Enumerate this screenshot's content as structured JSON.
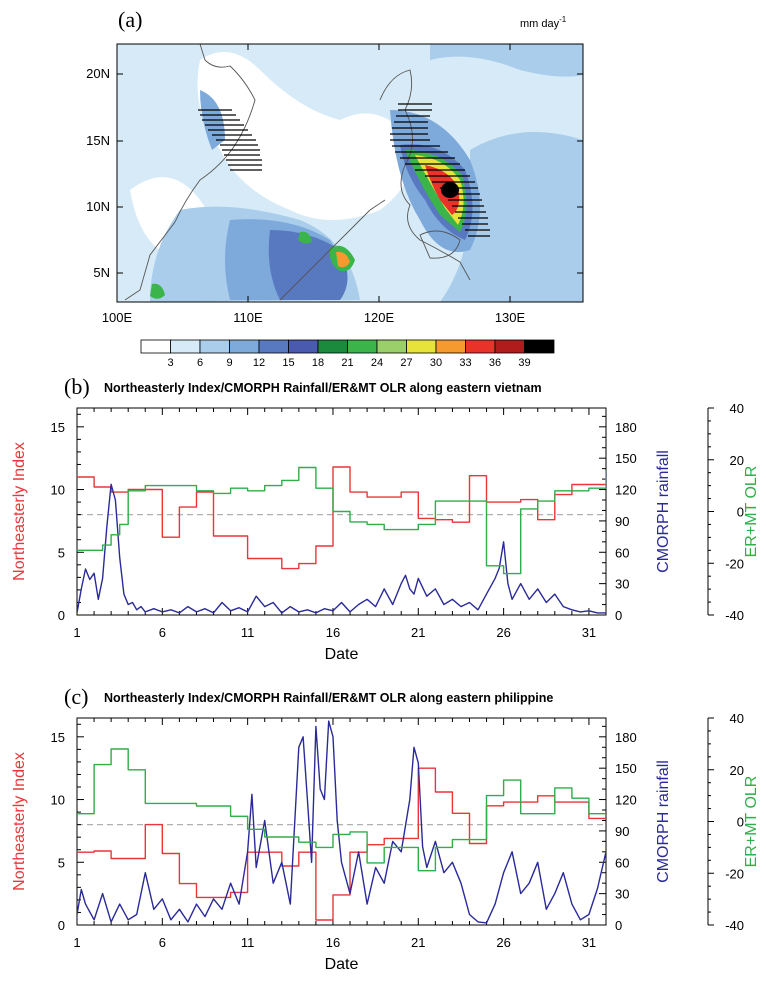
{
  "colors": {
    "ni_line": "#e8363a",
    "rain_line": "#2a2a9a",
    "olr_line": "#2fae4a",
    "ref_line": "#b0b0b0",
    "shading": [
      "#ffffff",
      "#d6ebf7",
      "#a9cdeb",
      "#7ea9db",
      "#5878c0",
      "#4a5aae",
      "#1c8a3c",
      "#3bb54a",
      "#9bcf6a",
      "#e8e33a",
      "#f59a2e",
      "#e8322a",
      "#b01c1c",
      "#000000"
    ]
  },
  "map": {
    "label": "(a)",
    "units_text": "mm day",
    "units_sup": "-1",
    "lat_labels": [
      "20N",
      "15N",
      "10N",
      "5N"
    ],
    "lon_labels": [
      "100E",
      "110E",
      "120E",
      "130E"
    ],
    "colorbar_labels": [
      "3",
      "6",
      "9",
      "12",
      "15",
      "18",
      "21",
      "24",
      "27",
      "30",
      "33",
      "36",
      "39"
    ]
  },
  "chart_data": [
    {
      "type": "line",
      "panel_label": "(b)",
      "title": "Northeasterly Index/CMORPH Rainfall/ER&MT OLR along eastern vietnam",
      "xlabel": "Date",
      "x_ticks": [
        1,
        6,
        11,
        16,
        21,
        26,
        31
      ],
      "xlim": [
        1,
        32
      ],
      "ylabel_left": "Northeasterly Index",
      "ylabel_right": "CMORPH rainfall",
      "ylabel_far": "ER+MT OLR",
      "yticks_left": [
        0,
        5,
        10,
        15
      ],
      "yticks_right": [
        0,
        30,
        60,
        90,
        120,
        150,
        180
      ],
      "yticks_far": [
        -40,
        -20,
        0,
        20,
        40
      ],
      "ylim_left": [
        0,
        16.5
      ],
      "ylim_right": [
        0,
        198
      ],
      "ylim_far": [
        -40,
        40
      ],
      "reference_line_left": 8,
      "series": [
        {
          "name": "Northeasterly Index",
          "axis": "left",
          "step": true,
          "color": "#e8363a",
          "x": [
            1,
            2,
            3,
            4,
            5,
            6,
            7,
            8,
            9,
            10,
            11,
            12,
            13,
            14,
            15,
            16,
            17,
            18,
            19,
            20,
            21,
            22,
            23,
            24,
            25,
            26,
            27,
            28,
            29,
            30,
            31,
            32
          ],
          "values": [
            11,
            10.2,
            9.8,
            10,
            10,
            6.2,
            8.6,
            9.8,
            6.3,
            6.3,
            4.5,
            4.5,
            3.7,
            4.1,
            5.5,
            11.8,
            9.8,
            9.4,
            9.4,
            9.8,
            7.7,
            7.6,
            7.4,
            11.1,
            9,
            9,
            9.2,
            7.6,
            9.6,
            10.4,
            10.4,
            10.4
          ]
        },
        {
          "name": "CMORPH rainfall",
          "axis": "right",
          "step": false,
          "color": "#2a2a9a",
          "x": [
            1,
            1.25,
            1.5,
            1.75,
            2,
            2.25,
            2.5,
            2.75,
            3,
            3.25,
            3.5,
            3.75,
            4,
            4.25,
            4.5,
            4.75,
            5,
            5.5,
            6,
            6.5,
            7,
            7.5,
            8,
            8.5,
            9,
            9.5,
            10,
            10.5,
            11,
            11.5,
            12,
            12.5,
            13,
            13.5,
            14,
            14.5,
            15,
            15.5,
            16,
            16.5,
            17,
            17.5,
            18,
            18.5,
            19,
            19.5,
            20,
            20.25,
            20.5,
            20.75,
            21,
            21.5,
            22,
            22.5,
            23,
            23.5,
            24,
            24.5,
            25,
            25.5,
            25.75,
            26,
            26.25,
            26.5,
            27,
            27.5,
            28,
            28.5,
            29,
            29.5,
            30,
            30.5,
            31,
            31.5,
            32
          ],
          "values": [
            2,
            25,
            44,
            34,
            40,
            15,
            35,
            85,
            125,
            110,
            55,
            20,
            10,
            12,
            5,
            8,
            3,
            6,
            3,
            5,
            2,
            8,
            3,
            6,
            2,
            12,
            4,
            7,
            3,
            18,
            8,
            12,
            2,
            8,
            3,
            5,
            2,
            6,
            4,
            12,
            3,
            10,
            15,
            8,
            25,
            10,
            30,
            38,
            25,
            20,
            35,
            18,
            25,
            10,
            15,
            8,
            12,
            5,
            20,
            35,
            45,
            70,
            30,
            15,
            30,
            15,
            25,
            12,
            20,
            8,
            5,
            3,
            4,
            2,
            2
          ]
        },
        {
          "name": "ER+MT OLR",
          "axis": "far",
          "step": true,
          "color": "#2fae4a",
          "x": [
            1,
            2,
            2.5,
            3,
            3.5,
            4,
            5,
            6,
            7,
            8,
            9,
            10,
            11,
            12,
            13,
            14,
            15,
            16,
            17,
            18,
            19,
            20,
            21,
            22,
            23,
            24,
            25,
            26,
            27,
            28,
            29,
            30,
            31,
            32
          ],
          "values": [
            -15,
            -15,
            -13,
            -9,
            -5,
            8,
            10,
            10,
            10,
            8,
            7,
            9,
            8,
            10,
            12,
            17,
            9,
            0,
            -4,
            -5,
            -7,
            -7,
            -5,
            4,
            4,
            4,
            -21,
            -24,
            1,
            4,
            8,
            8,
            9,
            16
          ]
        }
      ]
    },
    {
      "type": "line",
      "panel_label": "(c)",
      "title": "Northeasterly Index/CMORPH Rainfall/ER&MT OLR along eastern philippine",
      "xlabel": "Date",
      "x_ticks": [
        1,
        6,
        11,
        16,
        21,
        26,
        31
      ],
      "xlim": [
        1,
        32
      ],
      "ylabel_left": "Northeasterly Index",
      "ylabel_right": "CMORPH rainfall",
      "ylabel_far": "ER+MT OLR",
      "yticks_left": [
        0,
        5,
        10,
        15
      ],
      "yticks_right": [
        0,
        30,
        60,
        90,
        120,
        150,
        180
      ],
      "yticks_far": [
        -40,
        -20,
        0,
        20,
        40
      ],
      "ylim_left": [
        0,
        16.5
      ],
      "ylim_right": [
        0,
        198
      ],
      "ylim_far": [
        -40,
        40
      ],
      "reference_line_left": 8,
      "series": [
        {
          "name": "Northeasterly Index",
          "axis": "left",
          "step": true,
          "color": "#e8363a",
          "x": [
            1,
            2,
            3,
            4,
            5,
            6,
            7,
            8,
            9,
            10,
            11,
            12,
            13,
            14,
            15,
            16,
            17,
            18,
            19,
            20,
            21,
            22,
            23,
            24,
            25,
            26,
            27,
            28,
            29,
            30,
            31,
            32
          ],
          "values": [
            5.8,
            5.9,
            5.3,
            5.3,
            8,
            5.7,
            3.3,
            2.2,
            2.2,
            2.6,
            5.8,
            5.8,
            4.7,
            5.8,
            0.4,
            2.4,
            5.8,
            6.4,
            6.9,
            6.9,
            12.5,
            10.6,
            8.9,
            6.5,
            9.5,
            9.8,
            9.8,
            10.3,
            9.8,
            9.8,
            8.5,
            8.5
          ]
        },
        {
          "name": "CMORPH rainfall",
          "axis": "right",
          "step": false,
          "color": "#2a2a9a",
          "x": [
            1,
            1.25,
            1.5,
            2,
            2.5,
            3,
            3.5,
            4,
            4.5,
            5,
            5.5,
            6,
            6.5,
            7,
            7.5,
            8,
            8.5,
            9,
            9.5,
            10,
            10.5,
            11,
            11.25,
            11.5,
            12,
            12.5,
            13,
            13.5,
            14,
            14.25,
            14.5,
            14.75,
            15,
            15.25,
            15.5,
            15.75,
            16,
            16.25,
            16.5,
            17,
            17.5,
            18,
            18.5,
            19,
            19.5,
            20,
            20.5,
            20.75,
            21,
            21.25,
            21.5,
            22,
            22.5,
            23,
            23.5,
            24,
            24.5,
            25,
            25.5,
            26,
            26.5,
            27,
            27.5,
            28,
            28.5,
            29,
            29.5,
            30,
            30.5,
            31,
            31.5,
            32
          ],
          "values": [
            10,
            34,
            20,
            5,
            30,
            3,
            20,
            5,
            10,
            50,
            15,
            25,
            5,
            15,
            3,
            20,
            8,
            25,
            15,
            40,
            20,
            70,
            125,
            55,
            100,
            40,
            60,
            20,
            170,
            180,
            120,
            60,
            190,
            130,
            120,
            195,
            180,
            100,
            60,
            30,
            70,
            20,
            55,
            40,
            80,
            70,
            120,
            170,
            155,
            75,
            55,
            80,
            50,
            60,
            40,
            10,
            3,
            2,
            20,
            50,
            70,
            30,
            40,
            60,
            15,
            30,
            50,
            20,
            5,
            10,
            35,
            70
          ]
        },
        {
          "name": "ER+MT OLR",
          "axis": "far",
          "step": true,
          "color": "#2fae4a",
          "x": [
            1,
            2,
            3,
            4,
            5,
            6,
            7,
            8,
            9,
            10,
            11,
            12,
            13,
            14,
            15,
            16,
            17,
            18,
            19,
            20,
            21,
            22,
            23,
            24,
            25,
            26,
            27,
            28,
            29,
            30,
            31,
            32
          ],
          "values": [
            3,
            22,
            28,
            20,
            7,
            7,
            7,
            6,
            6,
            2,
            -3,
            -6,
            -6,
            -8,
            -10,
            -5,
            -4,
            -16,
            -10,
            -10,
            -19,
            -10,
            -7,
            -7,
            10,
            16,
            3,
            3,
            13,
            9,
            3,
            3
          ]
        }
      ]
    }
  ]
}
